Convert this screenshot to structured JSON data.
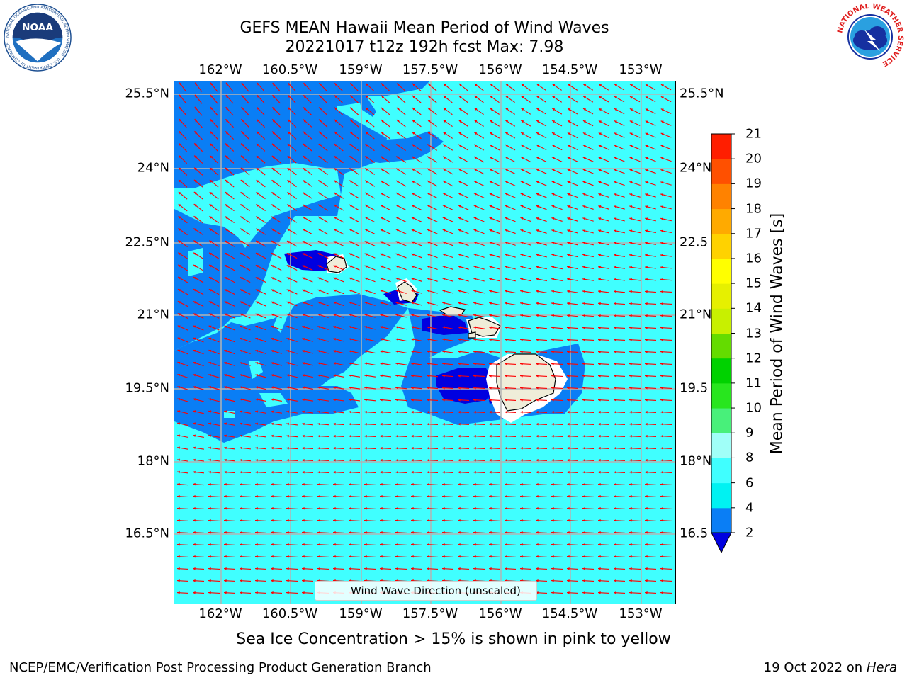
{
  "title": {
    "line1": "GEFS MEAN Hawaii Mean Period of Wind Waves",
    "line2": "20221017 t12z 192h fcst   Max: 7.98"
  },
  "axes": {
    "lon_ticks": [
      "162°W",
      "160.5°W",
      "159°W",
      "157.5°W",
      "156°W",
      "154.5°W",
      "153°W"
    ],
    "lat_ticks": [
      "25.5°N",
      "24°N",
      "22.5°N",
      "21°N",
      "19.5°N",
      "18°N",
      "16.5°N"
    ],
    "lat_ticks_right": [
      "25.5°N",
      "24°N",
      "22.5",
      "21°N",
      "19.5",
      "18°N",
      "16.5"
    ]
  },
  "legend": {
    "label": "Wind Wave Direction (unscaled)"
  },
  "colorbar": {
    "title": "Mean Period of Wind Waves [s]",
    "levels": [
      "2",
      "4",
      "6",
      "8",
      "9",
      "10",
      "11",
      "12",
      "13",
      "14",
      "15",
      "16",
      "17",
      "18",
      "19",
      "20",
      "21"
    ],
    "colors": [
      "#0000e0",
      "#0a7ef5",
      "#00f2f2",
      "#40ffff",
      "#a0fff8",
      "#48f07a",
      "#28e61e",
      "#00d200",
      "#64dc00",
      "#c8f000",
      "#e6f000",
      "#ffff00",
      "#ffd200",
      "#ffaa00",
      "#ff8200",
      "#ff5000",
      "#ff1e00",
      "#ff0000"
    ],
    "under_color": "#0000e0"
  },
  "footnote": "Sea Ice Concentration > 15% is shown in pink to yellow",
  "credits": {
    "left": "NCEP/EMC/Verification Post Processing Product Generation Branch",
    "right_date": "19 Oct 2022 on ",
    "right_host": "Hera"
  },
  "logos": {
    "noaa_text": "NOAA",
    "noaa_ring": "NATIONAL OCEANIC AND ATMOSPHERIC ADMINISTRATION · U.S. DEPARTMENT OF COMMERCE",
    "nws_ring": "NATIONAL WEATHER SERVICE"
  },
  "map_colors": {
    "ocean_light": "#40ffff",
    "ocean_mid": "#0a7ef5",
    "ocean_dark": "#0000e0",
    "ocean_pale": "#a0fff8",
    "land": "#efedd9",
    "arrow": "#ff0000",
    "grid": "#b4b4b4"
  }
}
